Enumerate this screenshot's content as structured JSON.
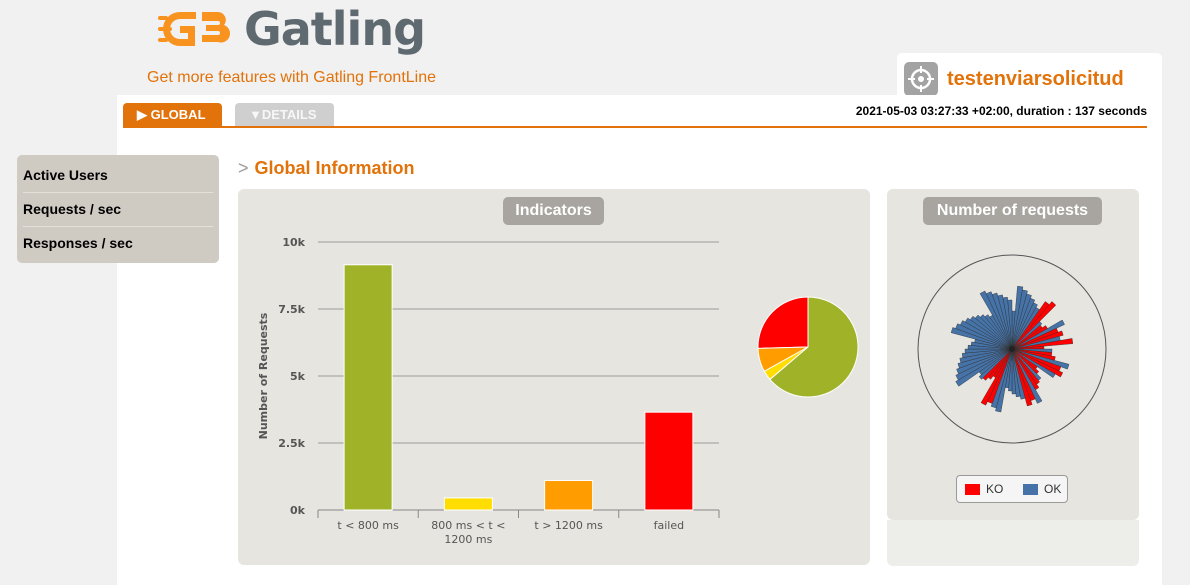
{
  "header": {
    "logo_text": "Gatling",
    "frontline_link": "Get more features with Gatling FrontLine",
    "simulation_name": "testenviarsolicitud",
    "run_info": "2021-05-03 03:27:33 +02:00, duration : 137 seconds"
  },
  "tabs": [
    {
      "label": "GLOBAL",
      "active": true
    },
    {
      "label": "DETAILS",
      "active": false
    }
  ],
  "side_menu": {
    "items": [
      {
        "label": "Active Users"
      },
      {
        "label": "Requests / sec"
      },
      {
        "label": "Responses / sec"
      }
    ]
  },
  "section": {
    "title": "Global Information"
  },
  "indicators_panel": {
    "title": "Indicators"
  },
  "requests_panel": {
    "title": "Number of requests",
    "legend": [
      {
        "label": "KO",
        "color": "#ff0000"
      },
      {
        "label": "OK",
        "color": "#4572a7"
      }
    ]
  },
  "colors": {
    "accent": "#e2720a",
    "bar_ok_fast": "#a0b228",
    "bar_ok_medium": "#ffdd00",
    "bar_ok_slow": "#ff9d00",
    "bar_failed": "#ff0000"
  },
  "chart_data": {
    "type": "bar",
    "ylabel": "Number of Requests",
    "ylim": [
      0,
      10000
    ],
    "yticks": [
      "0k",
      "2.5k",
      "5k",
      "7.5k",
      "10k"
    ],
    "ytick_values": [
      0,
      2500,
      5000,
      7500,
      10000
    ],
    "categories": [
      "t < 800 ms",
      "800 ms < t < 1200 ms",
      "t > 1200 ms",
      "failed"
    ],
    "category_lines": [
      [
        "t < 800 ms"
      ],
      [
        "800 ms < t <",
        "1200 ms"
      ],
      [
        "t > 1200 ms"
      ],
      [
        "failed"
      ]
    ],
    "values": [
      9150,
      450,
      1100,
      3650
    ],
    "colors": [
      "#a0b228",
      "#ffdd00",
      "#ff9d00",
      "#ff0000"
    ],
    "grid": true,
    "pie": {
      "type": "pie",
      "values": [
        9150,
        450,
        1100,
        3650
      ],
      "colors": [
        "#a0b228",
        "#ffdd00",
        "#ff9d00",
        "#ff0000"
      ]
    }
  }
}
